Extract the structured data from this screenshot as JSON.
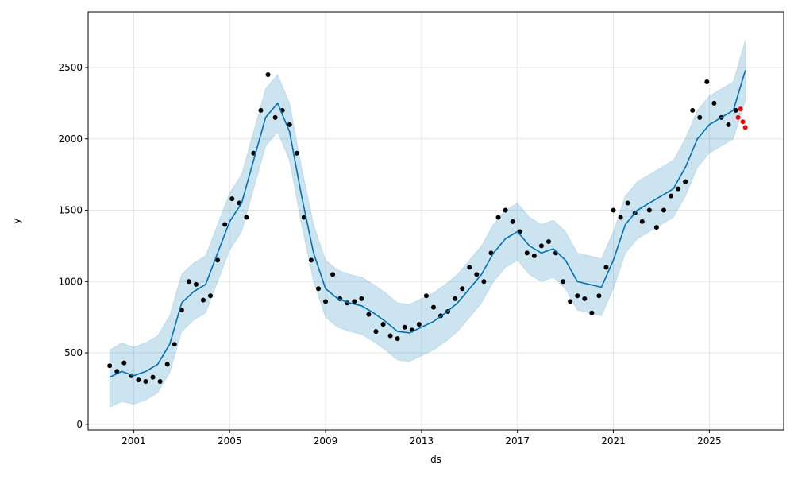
{
  "chart_data": {
    "type": "line",
    "xlabel": "ds",
    "ylabel": "y",
    "xlim": [
      1999.1,
      2028.1
    ],
    "ylim": [
      -40,
      2890
    ],
    "x_ticks": [
      2001,
      2005,
      2009,
      2013,
      2017,
      2021,
      2025
    ],
    "x_tick_labels": [
      "2001",
      "2005",
      "2009",
      "2013",
      "2017",
      "2021",
      "2025"
    ],
    "y_ticks": [
      0,
      500,
      1000,
      1500,
      2000,
      2500
    ],
    "y_tick_labels": [
      "0",
      "500",
      "1000",
      "1500",
      "2000",
      "2500"
    ],
    "grid": true,
    "colors": {
      "forecast_line": "#0072B2",
      "uncertainty_band": "#0072B2",
      "observed_points": "#000000",
      "holdout_points": "#ff0000"
    },
    "series": [
      {
        "role": "observed",
        "style": "points",
        "x": [
          2000.0,
          2000.3,
          2000.6,
          2000.9,
          2001.2,
          2001.5,
          2001.8,
          2002.1,
          2002.4,
          2002.7,
          2003.0,
          2003.3,
          2003.6,
          2003.9,
          2004.2,
          2004.5,
          2004.8,
          2005.1,
          2005.4,
          2005.7,
          2006.0,
          2006.3,
          2006.6,
          2006.9,
          2007.2,
          2007.5,
          2007.8,
          2008.1,
          2008.4,
          2008.7,
          2009.0,
          2009.3,
          2009.6,
          2009.9,
          2010.2,
          2010.5,
          2010.8,
          2011.1,
          2011.4,
          2011.7,
          2012.0,
          2012.3,
          2012.6,
          2012.9,
          2013.2,
          2013.5,
          2013.8,
          2014.1,
          2014.4,
          2014.7,
          2015.0,
          2015.3,
          2015.6,
          2015.9,
          2016.2,
          2016.5,
          2016.8,
          2017.1,
          2017.4,
          2017.7,
          2018.0,
          2018.3,
          2018.6,
          2018.9,
          2019.2,
          2019.5,
          2019.8,
          2020.1,
          2020.4,
          2020.7,
          2021.0,
          2021.3,
          2021.6,
          2021.9,
          2022.2,
          2022.5,
          2022.8,
          2023.1,
          2023.4,
          2023.7,
          2024.0,
          2024.3,
          2024.6,
          2024.9,
          2025.2,
          2025.5,
          2025.8,
          2026.1
        ],
        "y": [
          410,
          370,
          430,
          340,
          310,
          300,
          330,
          300,
          420,
          560,
          800,
          1000,
          980,
          870,
          900,
          1150,
          1400,
          1580,
          1550,
          1450,
          1900,
          2200,
          2450,
          2150,
          2200,
          2100,
          1900,
          1450,
          1150,
          950,
          860,
          1050,
          880,
          850,
          860,
          880,
          770,
          650,
          700,
          620,
          600,
          680,
          660,
          700,
          900,
          820,
          760,
          790,
          880,
          950,
          1100,
          1050,
          1000,
          1200,
          1450,
          1500,
          1420,
          1350,
          1200,
          1180,
          1250,
          1280,
          1200,
          1000,
          860,
          900,
          880,
          780,
          900,
          1100,
          1500,
          1450,
          1550,
          1480,
          1420,
          1500,
          1380,
          1500,
          1600,
          1650,
          1700,
          2200,
          2150,
          2400,
          2250,
          2150,
          2100,
          2200
        ]
      },
      {
        "role": "holdout",
        "style": "points",
        "x": [
          2026.2,
          2026.3,
          2026.4,
          2026.5
        ],
        "y": [
          2150,
          2210,
          2120,
          2080
        ]
      },
      {
        "role": "forecast",
        "style": "line",
        "x": [
          2000.0,
          2000.5,
          2001.0,
          2001.5,
          2002.0,
          2002.5,
          2003.0,
          2003.5,
          2004.0,
          2004.5,
          2005.0,
          2005.5,
          2006.0,
          2006.5,
          2007.0,
          2007.5,
          2008.0,
          2008.5,
          2009.0,
          2009.5,
          2010.0,
          2010.5,
          2011.0,
          2011.5,
          2012.0,
          2012.5,
          2013.0,
          2013.5,
          2014.0,
          2014.5,
          2015.0,
          2015.5,
          2016.0,
          2016.5,
          2017.0,
          2017.5,
          2018.0,
          2018.5,
          2019.0,
          2019.5,
          2020.0,
          2020.5,
          2021.0,
          2021.5,
          2022.0,
          2022.5,
          2023.0,
          2023.5,
          2024.0,
          2024.5,
          2025.0,
          2025.5,
          2026.0,
          2026.5
        ],
        "y": [
          330,
          370,
          340,
          370,
          420,
          560,
          850,
          930,
          980,
          1200,
          1420,
          1550,
          1850,
          2150,
          2250,
          2050,
          1600,
          1200,
          950,
          880,
          850,
          830,
          780,
          720,
          650,
          640,
          680,
          720,
          780,
          850,
          950,
          1050,
          1200,
          1300,
          1350,
          1250,
          1200,
          1230,
          1150,
          1000,
          980,
          960,
          1150,
          1400,
          1500,
          1550,
          1600,
          1650,
          1800,
          2000,
          2100,
          2150,
          2200,
          2480
        ]
      }
    ],
    "band": {
      "x": [
        2000.0,
        2000.5,
        2001.0,
        2001.5,
        2002.0,
        2002.5,
        2003.0,
        2003.5,
        2004.0,
        2004.5,
        2005.0,
        2005.5,
        2006.0,
        2006.5,
        2007.0,
        2007.5,
        2008.0,
        2008.5,
        2009.0,
        2009.5,
        2010.0,
        2010.5,
        2011.0,
        2011.5,
        2012.0,
        2012.5,
        2013.0,
        2013.5,
        2014.0,
        2014.5,
        2015.0,
        2015.5,
        2016.0,
        2016.5,
        2017.0,
        2017.5,
        2018.0,
        2018.5,
        2019.0,
        2019.5,
        2020.0,
        2020.5,
        2021.0,
        2021.5,
        2022.0,
        2022.5,
        2023.0,
        2023.5,
        2024.0,
        2024.5,
        2025.0,
        2025.5,
        2026.0,
        2026.5
      ],
      "lower": [
        120,
        160,
        140,
        170,
        220,
        360,
        650,
        730,
        780,
        1000,
        1220,
        1350,
        1650,
        1950,
        2050,
        1850,
        1400,
        1000,
        750,
        680,
        650,
        630,
        580,
        520,
        450,
        440,
        480,
        520,
        580,
        650,
        750,
        850,
        1000,
        1100,
        1150,
        1050,
        1000,
        1030,
        950,
        800,
        780,
        760,
        950,
        1200,
        1300,
        1350,
        1400,
        1450,
        1600,
        1800,
        1900,
        1950,
        2000,
        2270
      ],
      "upper": [
        520,
        570,
        540,
        570,
        620,
        760,
        1050,
        1130,
        1180,
        1400,
        1620,
        1750,
        2050,
        2350,
        2450,
        2250,
        1800,
        1400,
        1150,
        1080,
        1050,
        1030,
        980,
        920,
        850,
        840,
        880,
        920,
        980,
        1050,
        1150,
        1250,
        1400,
        1500,
        1550,
        1450,
        1400,
        1430,
        1350,
        1200,
        1180,
        1160,
        1350,
        1600,
        1700,
        1750,
        1800,
        1850,
        2000,
        2200,
        2300,
        2350,
        2400,
        2690
      ]
    }
  }
}
